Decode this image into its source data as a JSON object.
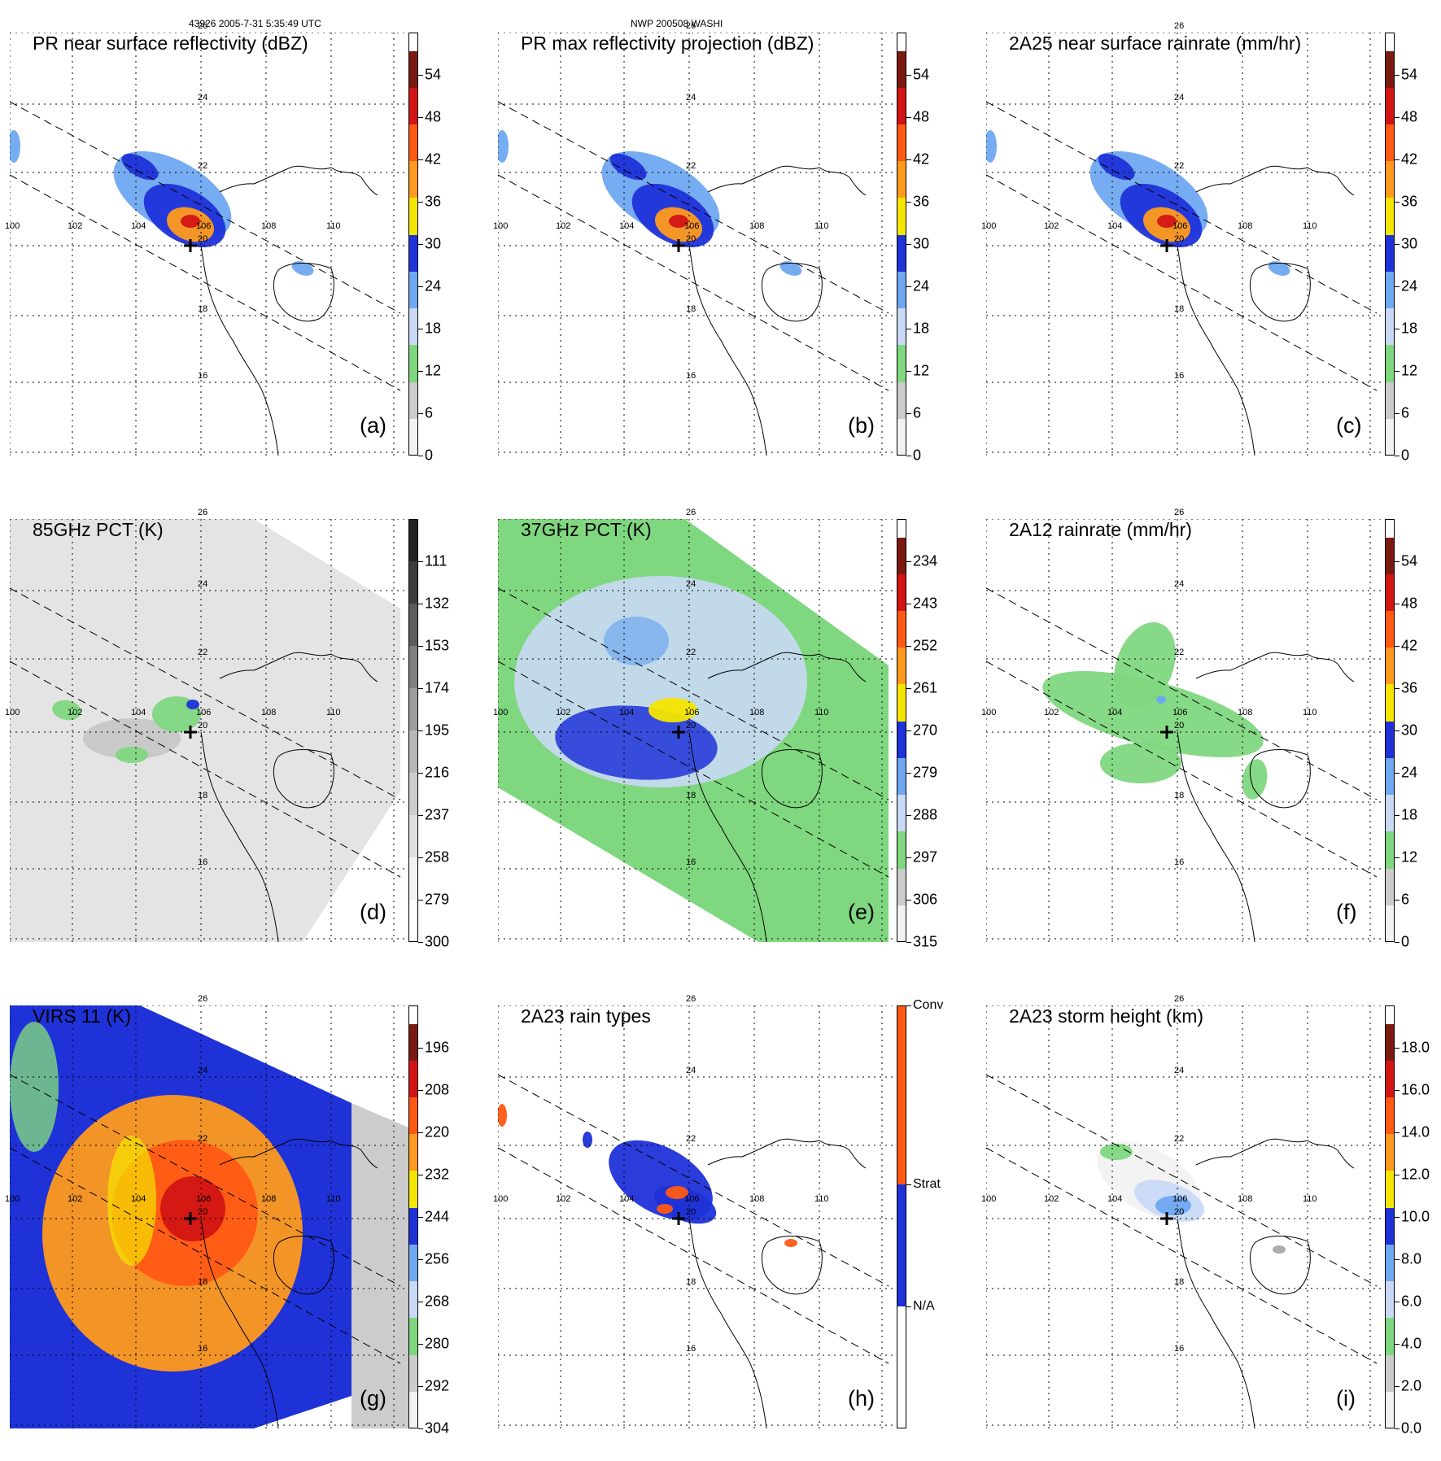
{
  "header": {
    "orbit_time": "43926 2005-7-31 5:35:49 UTC",
    "storm": "NWP 200508 WASHI"
  },
  "map": {
    "lat_labels": [
      "26",
      "24",
      "22",
      "20",
      "18",
      "16"
    ],
    "lon_labels": [
      "100",
      "102",
      "104",
      "106",
      "108",
      "110"
    ]
  },
  "panels": [
    {
      "id": "a",
      "title": "PR near surface reflectivity (dBZ)",
      "label": "(a)",
      "colorbar": {
        "ticks": [
          "0",
          "6",
          "12",
          "18",
          "24",
          "30",
          "36",
          "42",
          "48",
          "54"
        ]
      },
      "field": "pr-swath"
    },
    {
      "id": "b",
      "title": "PR max reflectivity projection (dBZ)",
      "label": "(b)",
      "colorbar": {
        "ticks": [
          "0",
          "6",
          "12",
          "18",
          "24",
          "30",
          "36",
          "42",
          "48",
          "54"
        ]
      },
      "field": "pr-swath"
    },
    {
      "id": "c",
      "title": "2A25 near surface rainrate (mm/hr)",
      "label": "(c)",
      "colorbar": {
        "ticks": [
          "0",
          "6",
          "12",
          "18",
          "24",
          "30",
          "36",
          "42",
          "48",
          "54"
        ]
      },
      "field": "pr-swath"
    },
    {
      "id": "d",
      "title": "85GHz PCT (K)",
      "label": "(d)",
      "colorbar": {
        "ticks": [
          "300",
          "279",
          "258",
          "237",
          "216",
          "195",
          "174",
          "153",
          "132",
          "111"
        ]
      },
      "field": "tmi-gray"
    },
    {
      "id": "e",
      "title": "37GHz PCT (K)",
      "label": "(e)",
      "colorbar": {
        "ticks": [
          "315",
          "306",
          "297",
          "288",
          "279",
          "270",
          "261",
          "252",
          "243",
          "234"
        ]
      },
      "field": "tmi-color"
    },
    {
      "id": "f",
      "title": "2A12 rainrate (mm/hr)",
      "label": "(f)",
      "colorbar": {
        "ticks": [
          "0",
          "6",
          "12",
          "18",
          "24",
          "30",
          "36",
          "42",
          "48",
          "54"
        ]
      },
      "field": "tmi-rain"
    },
    {
      "id": "g",
      "title": "VIRS 11 (K)",
      "label": "(g)",
      "colorbar": {
        "ticks": [
          "304",
          "292",
          "280",
          "268",
          "256",
          "244",
          "232",
          "220",
          "208",
          "196"
        ]
      },
      "field": "virs"
    },
    {
      "id": "h",
      "title": "2A23 rain types",
      "label": "(h)",
      "colorbar": {
        "ticks": [
          "N/A",
          "Strat",
          "Conv"
        ]
      },
      "field": "raintype"
    },
    {
      "id": "i",
      "title": "2A23 storm height (km)",
      "label": "(i)",
      "colorbar": {
        "ticks": [
          "0.0",
          "2.0",
          "4.0",
          "6.0",
          "8.0",
          "10.0",
          "12.0",
          "14.0",
          "16.0",
          "18.0"
        ]
      },
      "field": "stormheight"
    }
  ],
  "colors": {
    "gray_light": "#f2f2f2",
    "gray_mid": "#cccccc",
    "gray_dark": "#a8a8a8",
    "green": "#7fd77f",
    "blue_light": "#c9d9f5",
    "blue_mid": "#6fa8f0",
    "blue": "#1f32d8",
    "yellow": "#f5e600",
    "orange": "#ff9a1e",
    "orange_red": "#ff5a14",
    "red": "#d21414",
    "dark_red": "#7a1a10",
    "rain_type_conv": "#ff5a14",
    "rain_type_strat": "#1f32d8",
    "rain_type_na": "#ffffff"
  }
}
